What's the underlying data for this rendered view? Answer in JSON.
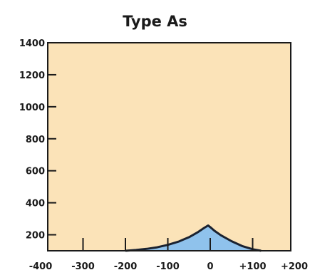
{
  "chart_data": {
    "type": "area",
    "title": "Type As",
    "xlabel": "",
    "ylabel": "",
    "xlim": [
      -400,
      200
    ],
    "ylim": [
      100,
      1400
    ],
    "x_ticks": [
      -400,
      -300,
      -200,
      -100,
      0,
      100,
      200
    ],
    "x_tick_labels": [
      "-400",
      "-300",
      "-200",
      "-100",
      "0",
      "+100",
      "+200"
    ],
    "y_ticks": [
      200,
      400,
      600,
      800,
      1000,
      1200,
      1400
    ],
    "y_tick_labels": [
      "200",
      "400",
      "600",
      "800",
      "1000",
      "1200",
      "1400"
    ],
    "series": [
      {
        "x": [
          -200,
          -175,
          -150,
          -125,
          -100,
          -75,
          -50,
          -30,
          -15,
          -5,
          0,
          10,
          25,
          50,
          75,
          100,
          120
        ],
        "y": [
          100,
          105,
          112,
          122,
          137,
          157,
          185,
          215,
          242,
          258,
          248,
          225,
          197,
          160,
          130,
          110,
          100
        ]
      }
    ],
    "colors": {
      "plot_background": "#fbe3b8",
      "fill": "#8fc2ec",
      "line": "#1a2230",
      "frame": "#1a1a1a"
    },
    "grid": false,
    "legend": "none"
  }
}
